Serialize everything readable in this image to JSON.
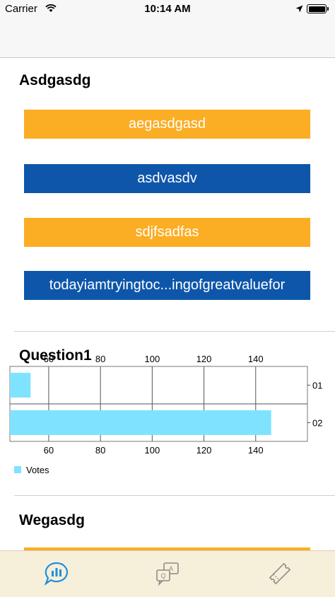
{
  "status_bar": {
    "carrier": "Carrier",
    "time": "10:14 AM"
  },
  "colors": {
    "orange": "#fbad24",
    "blue": "#0e56aa",
    "bar": "#7fe3ff"
  },
  "poll1": {
    "title": "Asdgasdg",
    "options": [
      "aegasdgasd",
      "asdvasdv",
      "sdjfsadfas",
      "todayiamtryingtoc...ingofgreatvaluefor"
    ]
  },
  "question": {
    "title": "Question1",
    "chart_data": {
      "type": "bar",
      "orientation": "horizontal",
      "categories": [
        "01",
        "02"
      ],
      "series": [
        {
          "name": "Votes",
          "values": [
            53,
            146
          ]
        }
      ],
      "xlim": [
        45,
        160
      ],
      "ticks": [
        "60",
        "80",
        "100",
        "120",
        "140"
      ],
      "legend": "bottom-left",
      "grid": true
    }
  },
  "poll2": {
    "title": "Wegasdg"
  },
  "tabs": [
    {
      "icon": "chart-bubble-icon",
      "active": true
    },
    {
      "icon": "qa-icon",
      "active": false
    },
    {
      "icon": "ticket-icon",
      "active": false
    }
  ]
}
